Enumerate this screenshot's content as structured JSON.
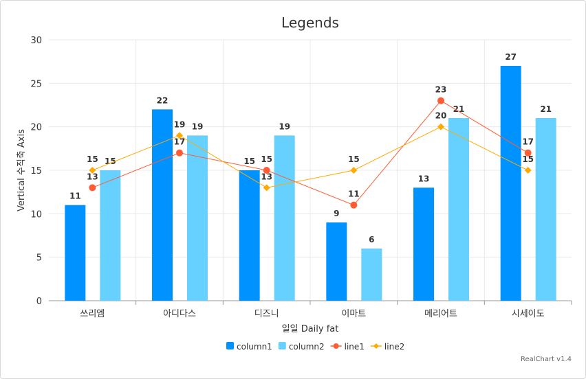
{
  "chart_data": {
    "type": "bar",
    "title": "Legends",
    "xlabel": "일일 Daily fat",
    "ylabel": "Vertical 수직축 Axis",
    "ylim": [
      0,
      30
    ],
    "yticks": [
      0,
      5,
      10,
      15,
      20,
      25,
      30
    ],
    "grid": true,
    "legend_placement": "bottom",
    "categories": [
      "쓰리엠",
      "아디다스",
      "디즈니",
      "이마트",
      "메리어트",
      "시세이도"
    ],
    "series": [
      {
        "name": "column1",
        "type": "bar",
        "color": "#0093ff",
        "values": [
          11,
          22,
          15,
          9,
          13,
          27
        ]
      },
      {
        "name": "column2",
        "type": "bar",
        "color": "#66d0ff",
        "values": [
          15,
          19,
          19,
          6,
          21,
          21
        ]
      },
      {
        "name": "line1",
        "type": "line",
        "color": "#ff5c35",
        "marker": "circle",
        "values": [
          13,
          17,
          15,
          11,
          23,
          17
        ]
      },
      {
        "name": "line2",
        "type": "line",
        "color": "#ffaa00",
        "marker": "diamond",
        "values": [
          15,
          19,
          13,
          15,
          20,
          15
        ]
      }
    ],
    "credit": "RealChart v1.4"
  }
}
